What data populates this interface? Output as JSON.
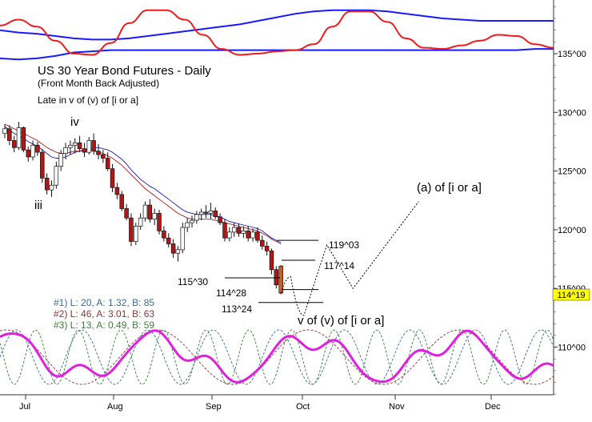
{
  "chart_data": {
    "type": "candlestick",
    "title": "US 30 Year Bond Futures - Daily",
    "subtitle": "(Front Month Back Adjusted)",
    "note": "Late in v of (v) of [i or a]",
    "y_axis": {
      "side": "right",
      "range": [
        104.8,
        139.9
      ],
      "ticks": [
        "135^00",
        "130^00",
        "125^00",
        "120^00",
        "115^00",
        "110^00"
      ],
      "tick_values": [
        135,
        130,
        125,
        120,
        115,
        110
      ],
      "last_price_label": "114^19",
      "last_price": 114.6
    },
    "x_axis": {
      "months": [
        "Jul",
        "Aug",
        "Sep",
        "Oct",
        "Nov",
        "Dec"
      ]
    },
    "candles": [
      {
        "o": 128.2,
        "h": 129.0,
        "l": 127.8,
        "c": 128.6
      },
      {
        "o": 128.6,
        "h": 128.9,
        "l": 127.2,
        "c": 127.6
      },
      {
        "o": 127.6,
        "h": 128.0,
        "l": 126.6,
        "c": 127.0
      },
      {
        "o": 127.0,
        "h": 129.2,
        "l": 126.8,
        "c": 128.7
      },
      {
        "o": 128.7,
        "h": 128.8,
        "l": 126.6,
        "c": 126.8
      },
      {
        "o": 126.8,
        "h": 127.1,
        "l": 125.8,
        "c": 126.2
      },
      {
        "o": 126.2,
        "h": 127.6,
        "l": 125.9,
        "c": 127.2
      },
      {
        "o": 127.2,
        "h": 127.5,
        "l": 126.3,
        "c": 126.6
      },
      {
        "o": 126.6,
        "h": 126.9,
        "l": 124.0,
        "c": 124.4
      },
      {
        "o": 124.4,
        "h": 124.8,
        "l": 123.0,
        "c": 123.4
      },
      {
        "o": 123.4,
        "h": 124.2,
        "l": 122.8,
        "c": 123.8
      },
      {
        "o": 123.8,
        "h": 125.8,
        "l": 123.5,
        "c": 125.4
      },
      {
        "o": 125.4,
        "h": 126.8,
        "l": 125.0,
        "c": 126.5
      },
      {
        "o": 126.5,
        "h": 127.4,
        "l": 126.0,
        "c": 127.0
      },
      {
        "o": 127.0,
        "h": 127.6,
        "l": 126.4,
        "c": 127.2
      },
      {
        "o": 127.2,
        "h": 127.8,
        "l": 126.5,
        "c": 127.4
      },
      {
        "o": 127.4,
        "h": 128.0,
        "l": 126.6,
        "c": 126.9
      },
      {
        "o": 126.9,
        "h": 127.4,
        "l": 126.2,
        "c": 126.6
      },
      {
        "o": 126.6,
        "h": 127.9,
        "l": 126.4,
        "c": 127.6
      },
      {
        "o": 127.6,
        "h": 128.2,
        "l": 126.4,
        "c": 126.7
      },
      {
        "o": 126.7,
        "h": 127.3,
        "l": 126.0,
        "c": 126.4
      },
      {
        "o": 126.4,
        "h": 126.8,
        "l": 125.7,
        "c": 126.1
      },
      {
        "o": 126.1,
        "h": 126.6,
        "l": 125.0,
        "c": 125.2
      },
      {
        "o": 125.2,
        "h": 125.6,
        "l": 123.2,
        "c": 123.6
      },
      {
        "o": 123.6,
        "h": 124.0,
        "l": 122.6,
        "c": 123.0
      },
      {
        "o": 123.0,
        "h": 123.3,
        "l": 121.6,
        "c": 121.8
      },
      {
        "o": 121.8,
        "h": 122.2,
        "l": 120.8,
        "c": 121.0
      },
      {
        "o": 121.0,
        "h": 121.4,
        "l": 118.6,
        "c": 119.0
      },
      {
        "o": 119.0,
        "h": 120.6,
        "l": 118.7,
        "c": 120.3
      },
      {
        "o": 120.3,
        "h": 121.4,
        "l": 120.0,
        "c": 121.0
      },
      {
        "o": 121.0,
        "h": 122.4,
        "l": 120.7,
        "c": 122.1
      },
      {
        "o": 122.1,
        "h": 122.6,
        "l": 120.6,
        "c": 120.9
      },
      {
        "o": 120.9,
        "h": 121.8,
        "l": 120.4,
        "c": 121.4
      },
      {
        "o": 121.4,
        "h": 121.7,
        "l": 119.6,
        "c": 119.9
      },
      {
        "o": 119.9,
        "h": 120.3,
        "l": 119.0,
        "c": 119.3
      },
      {
        "o": 119.3,
        "h": 119.7,
        "l": 118.5,
        "c": 118.8
      },
      {
        "o": 118.8,
        "h": 119.2,
        "l": 117.6,
        "c": 118.0
      },
      {
        "o": 118.0,
        "h": 118.6,
        "l": 117.3,
        "c": 118.3
      },
      {
        "o": 118.3,
        "h": 120.6,
        "l": 118.0,
        "c": 120.2
      },
      {
        "o": 120.2,
        "h": 121.0,
        "l": 119.8,
        "c": 120.6
      },
      {
        "o": 120.6,
        "h": 121.2,
        "l": 120.2,
        "c": 120.8
      },
      {
        "o": 120.8,
        "h": 121.6,
        "l": 120.5,
        "c": 121.3
      },
      {
        "o": 121.3,
        "h": 121.8,
        "l": 120.8,
        "c": 121.5
      },
      {
        "o": 121.5,
        "h": 122.1,
        "l": 121.0,
        "c": 121.4
      },
      {
        "o": 121.4,
        "h": 122.3,
        "l": 120.9,
        "c": 121.6
      },
      {
        "o": 121.6,
        "h": 121.9,
        "l": 120.9,
        "c": 121.1
      },
      {
        "o": 121.1,
        "h": 121.4,
        "l": 120.4,
        "c": 120.6
      },
      {
        "o": 120.6,
        "h": 120.9,
        "l": 119.0,
        "c": 119.3
      },
      {
        "o": 119.3,
        "h": 120.2,
        "l": 119.0,
        "c": 119.8
      },
      {
        "o": 119.8,
        "h": 120.6,
        "l": 119.4,
        "c": 120.2
      },
      {
        "o": 120.2,
        "h": 120.5,
        "l": 119.4,
        "c": 119.7
      },
      {
        "o": 119.7,
        "h": 120.3,
        "l": 119.3,
        "c": 119.9
      },
      {
        "o": 119.9,
        "h": 120.3,
        "l": 119.0,
        "c": 119.3
      },
      {
        "o": 119.3,
        "h": 120.1,
        "l": 119.0,
        "c": 119.8
      },
      {
        "o": 119.8,
        "h": 120.2,
        "l": 118.9,
        "c": 119.1
      },
      {
        "o": 119.1,
        "h": 119.5,
        "l": 118.3,
        "c": 118.6
      },
      {
        "o": 118.6,
        "h": 119.0,
        "l": 117.8,
        "c": 118.2
      },
      {
        "o": 118.2,
        "h": 118.4,
        "l": 116.2,
        "c": 116.6
      },
      {
        "o": 116.6,
        "h": 116.9,
        "l": 115.0,
        "c": 115.3
      },
      {
        "o": 116.9,
        "h": 117.0,
        "l": 114.5,
        "c": 114.6
      }
    ],
    "moving_averages": [
      {
        "color": "#1a1ab0",
        "values": [
          128.8,
          128.5,
          128.2,
          128.0,
          127.8,
          127.5,
          127.3,
          127.1,
          126.8,
          126.5,
          126.2,
          126.1,
          126.1,
          126.2,
          126.4,
          126.6,
          126.7,
          126.8,
          126.9,
          127.0,
          127.0,
          126.9,
          126.8,
          126.6,
          126.3,
          126.0,
          125.6,
          125.1,
          124.7,
          124.3,
          124.0,
          123.7,
          123.5,
          123.2,
          122.9,
          122.6,
          122.3,
          122.0,
          121.7,
          121.5,
          121.4,
          121.3,
          121.3,
          121.3,
          121.3,
          121.2,
          121.1,
          120.9,
          120.7,
          120.6,
          120.5,
          120.4,
          120.3,
          120.2,
          120.1,
          119.9,
          119.6,
          119.3,
          119.1,
          118.9
        ]
      },
      {
        "color": "#a21f1f",
        "values": [
          129.0,
          128.8,
          128.6,
          128.4,
          128.2,
          128.0,
          127.8,
          127.6,
          127.3,
          127.0,
          126.8,
          126.6,
          126.5,
          126.5,
          126.6,
          126.7,
          126.7,
          126.7,
          126.7,
          126.7,
          126.6,
          126.5,
          126.3,
          126.1,
          125.8,
          125.5,
          125.1,
          124.7,
          124.3,
          123.9,
          123.5,
          123.2,
          122.9,
          122.6,
          122.3,
          122.0,
          121.7,
          121.4,
          121.2,
          121.0,
          120.9,
          120.9,
          120.9,
          120.9,
          120.9,
          120.8,
          120.7,
          120.6,
          120.5,
          120.4,
          120.3,
          120.2,
          120.1,
          120.0,
          119.9,
          119.7,
          119.5,
          119.2,
          119.0,
          118.8
        ]
      }
    ],
    "wave_labels": [
      {
        "text": "iv",
        "x_candle": 14,
        "y": 130.3
      },
      {
        "text": "iii",
        "x_candle": 8,
        "y": 121.9
      }
    ],
    "levels": [
      {
        "text": "119^03",
        "from_candle": 51,
        "to_x": "Oct",
        "value": 119.1
      },
      {
        "text": "117^14",
        "from_candle": 52,
        "to_x": "Oct",
        "value": 117.4
      },
      {
        "text": "115^30",
        "from_candle": 47,
        "to_x": "Oct",
        "value": 115.9
      },
      {
        "text": "114^28",
        "from_candle": 51,
        "to_x": "Oct",
        "value": 114.9
      },
      {
        "text": "113^24",
        "from_candle": 49,
        "to_x": "Oct",
        "value": 113.8
      }
    ],
    "projection": {
      "points": [
        [
          0,
          114.6
        ],
        [
          1.5,
          116.0
        ],
        [
          3.5,
          112.7
        ],
        [
          7,
          118.7
        ],
        [
          11,
          115.0
        ],
        [
          21,
          122.4
        ]
      ],
      "labels": [
        {
          "text": "v of (v) of [i or a]"
        },
        {
          "text": "(a) of [i or a]"
        }
      ]
    },
    "upper_oscillator": {
      "band_upper": [
        137.0,
        136.8,
        136.7,
        136.5,
        136.3,
        136.2,
        136.2,
        136.3,
        136.5,
        136.7,
        136.9,
        137.1,
        137.3,
        137.5,
        137.8,
        138.1,
        138.4,
        138.6,
        138.7,
        138.7,
        138.7,
        138.6,
        138.4,
        138.2,
        138.0,
        137.9,
        137.8,
        137.8,
        137.8,
        137.8,
        137.8
      ],
      "band_lower": [
        134.6,
        134.5,
        134.6,
        134.8,
        135.1,
        135.2,
        135.3,
        135.3,
        135.3,
        135.3,
        135.3,
        135.3,
        135.3,
        135.3,
        135.3,
        135.3,
        135.3,
        135.3,
        135.3,
        135.3,
        135.3,
        135.3,
        135.3,
        135.3,
        135.3,
        135.3,
        135.3,
        135.3,
        135.3,
        135.4,
        135.4
      ],
      "line": [
        137.4,
        137.9,
        137.3,
        136.1,
        135.0,
        134.9,
        135.9,
        137.6,
        138.7,
        138.7,
        137.9,
        136.6,
        135.4,
        134.9,
        135.0,
        135.2,
        135.3,
        135.8,
        137.3,
        138.6,
        138.6,
        137.7,
        136.3,
        135.5,
        135.4,
        135.7,
        136.1,
        136.6,
        136.5,
        135.8,
        135.5
      ]
    },
    "cycles": [
      {
        "label": "#1) L: 20, A: 1.32, B: 85",
        "color": "#356a9c",
        "period": 20,
        "amp": 1.32
      },
      {
        "label": "#2) L: 46, A: 3.01, B: 63",
        "color": "#8c3434",
        "period": 46,
        "amp": 3.01
      },
      {
        "label": "#3) L: 13, A: 0.49, B: 59",
        "color": "#3d7c3d",
        "period": 13,
        "amp": 0.49
      }
    ],
    "composite_color": "#e020e0"
  }
}
